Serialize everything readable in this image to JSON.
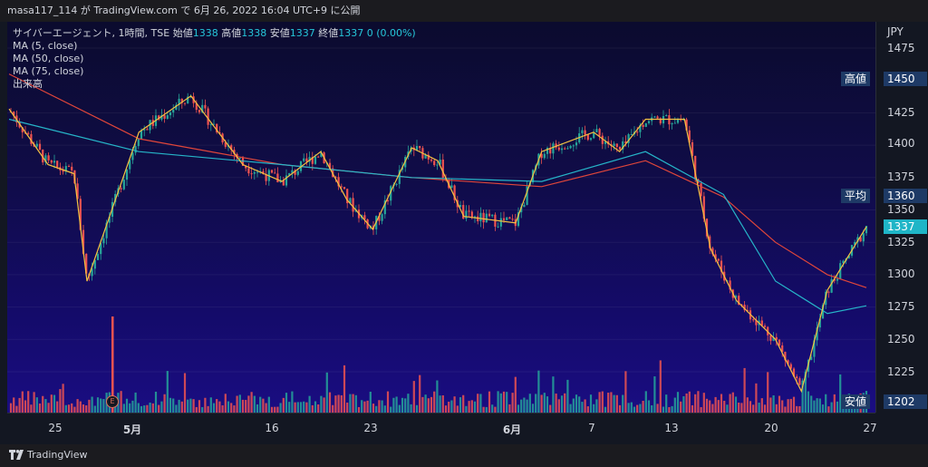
{
  "header": {
    "caption": "masa117_114 が TradingView.com で 6月 26, 2022 16:04 UTC+9 に公開"
  },
  "legend": {
    "symbol": "サイバーエージェント, 1時間, TSE",
    "open_label": "始値",
    "open_value": "1338",
    "high_label": "高値",
    "high_value": "1338",
    "low_label": "安値",
    "low_value": "1337",
    "close_label": "終値",
    "close_value": "1337",
    "change": "0 (0.00%)",
    "ma5": "MA (5, close)",
    "ma50": "MA (50, close)",
    "ma75": "MA (75, close)",
    "volume": "出来高"
  },
  "yaxis": {
    "currency": "JPY",
    "ticks": [
      "1475",
      "1425",
      "1400",
      "1375",
      "1350",
      "1325",
      "1300",
      "1275",
      "1250",
      "1225"
    ],
    "tick_values": [
      1475,
      1425,
      1400,
      1375,
      1350,
      1325,
      1300,
      1275,
      1250,
      1225
    ]
  },
  "markers": {
    "high_label": "高値",
    "high_value": "1450",
    "avg_label": "平均",
    "avg_value": "1360",
    "low_label": "安値",
    "low_value": "1202",
    "last_value": "1337"
  },
  "xaxis": {
    "labels": [
      {
        "text": "25",
        "bold": false
      },
      {
        "text": "5月",
        "bold": true
      },
      {
        "text": "16",
        "bold": false
      },
      {
        "text": "23",
        "bold": false
      },
      {
        "text": "6月",
        "bold": true
      },
      {
        "text": "7",
        "bold": false
      },
      {
        "text": "13",
        "bold": false
      },
      {
        "text": "20",
        "bold": false
      },
      {
        "text": "27",
        "bold": false
      }
    ]
  },
  "earnings_marker": "E",
  "footer": {
    "brand": "TradingView"
  },
  "colors": {
    "up": "#26a69a",
    "down": "#ef5350",
    "ma5": "#f5c242",
    "ma50": "#26b5c8",
    "ma75": "#e0463a",
    "accent": "#1fb5c7"
  },
  "chart_data": {
    "type": "line",
    "unit": "JPY",
    "ylim": [
      1200,
      1485
    ],
    "x_range": [
      "2022-04-22",
      "2022-06-27"
    ],
    "series": [
      {
        "name": "MA (5, close)",
        "x": [
          "04-22",
          "04-25",
          "04-27",
          "04-28",
          "05-02",
          "05-06",
          "05-10",
          "05-13",
          "05-16",
          "05-18",
          "05-20",
          "05-23",
          "05-25",
          "05-27",
          "05-31",
          "06-02",
          "06-06",
          "06-08",
          "06-10",
          "06-13",
          "06-15",
          "06-17",
          "06-20",
          "06-22",
          "06-24",
          "06-27"
        ],
        "values": [
          1428,
          1385,
          1378,
          1295,
          1410,
          1438,
          1385,
          1372,
          1395,
          1358,
          1335,
          1398,
          1388,
          1345,
          1340,
          1395,
          1410,
          1395,
          1420,
          1420,
          1320,
          1280,
          1250,
          1210,
          1288,
          1337
        ]
      },
      {
        "name": "MA (50, close)",
        "x": [
          "04-22",
          "05-02",
          "05-13",
          "05-23",
          "06-02",
          "06-10",
          "06-16",
          "06-20",
          "06-24",
          "06-27"
        ],
        "values": [
          1420,
          1395,
          1385,
          1375,
          1372,
          1395,
          1362,
          1295,
          1270,
          1276
        ]
      },
      {
        "name": "MA (75, close)",
        "x": [
          "04-22",
          "05-02",
          "05-13",
          "05-23",
          "06-02",
          "06-10",
          "06-16",
          "06-20",
          "06-24",
          "06-27"
        ],
        "values": [
          1455,
          1405,
          1385,
          1375,
          1368,
          1388,
          1360,
          1325,
          1300,
          1290
        ]
      }
    ]
  }
}
